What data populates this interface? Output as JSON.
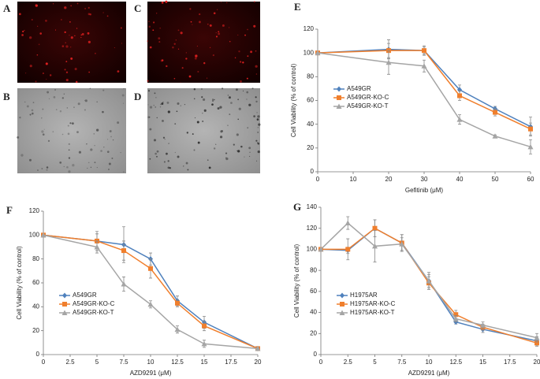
{
  "panels": [
    "A",
    "B",
    "C",
    "D"
  ],
  "chart_data": [
    {
      "type": "line",
      "label": "E",
      "x_label": "Gefitinib (μM)",
      "y_label": "Cell Viability (% of control)",
      "x": [
        0,
        20,
        30,
        40,
        50,
        60
      ],
      "xlim": [
        0,
        60
      ],
      "xticks": [
        0,
        10,
        20,
        30,
        40,
        50,
        60
      ],
      "ylim": [
        0,
        120
      ],
      "yticks": [
        0,
        20,
        40,
        60,
        80,
        100,
        120
      ],
      "legend": "center-left",
      "series": [
        {
          "name": "A549GR",
          "color": "#4f81bd",
          "marker": "diamond",
          "values": [
            100,
            103,
            102,
            69,
            53,
            38
          ],
          "errors": [
            0,
            8,
            3,
            4,
            2,
            8
          ]
        },
        {
          "name": "A549GR-KO-C",
          "color": "#f07f2d",
          "marker": "square",
          "values": [
            100,
            102,
            102,
            64,
            50,
            36
          ],
          "errors": [
            0,
            6,
            4,
            4,
            3,
            5
          ]
        },
        {
          "name": "A549GR-KO-T",
          "color": "#a5a5a5",
          "marker": "triangle",
          "values": [
            100,
            92,
            89,
            44,
            30,
            21
          ],
          "errors": [
            0,
            10,
            5,
            4,
            1,
            6
          ]
        }
      ]
    },
    {
      "type": "line",
      "label": "F",
      "x_label": "AZD9291 (μM)",
      "y_label": "Cell Viability (% of control)",
      "x": [
        0,
        5,
        7.5,
        10,
        12.5,
        15,
        20
      ],
      "xlim": [
        0,
        20
      ],
      "xticks": [
        0,
        2.5,
        5,
        7.5,
        10,
        12.5,
        15,
        17.5,
        20
      ],
      "ylim": [
        0,
        120
      ],
      "yticks": [
        0,
        20,
        40,
        60,
        80,
        100,
        120
      ],
      "legend": "lower-left",
      "series": [
        {
          "name": "A549GR",
          "color": "#4f81bd",
          "marker": "diamond",
          "values": [
            100,
            95,
            92,
            80,
            45,
            27,
            5
          ],
          "errors": [
            0,
            8,
            15,
            5,
            4,
            5,
            1
          ]
        },
        {
          "name": "A549GR-KO-C",
          "color": "#f07f2d",
          "marker": "square",
          "values": [
            100,
            95,
            87,
            72,
            43,
            24,
            5
          ],
          "errors": [
            0,
            6,
            8,
            8,
            3,
            4,
            1
          ]
        },
        {
          "name": "A549GR-KO-T",
          "color": "#a5a5a5",
          "marker": "triangle",
          "values": [
            100,
            90,
            59,
            42,
            21,
            9,
            5
          ],
          "errors": [
            0,
            5,
            6,
            3,
            3,
            3,
            1
          ]
        }
      ]
    },
    {
      "type": "line",
      "label": "G",
      "x_label": "AZD9291 (μM)",
      "y_label": "Cell Viability (% of control)",
      "x": [
        0,
        2.5,
        5,
        7.5,
        10,
        12.5,
        15,
        20
      ],
      "xlim": [
        0,
        20
      ],
      "xticks": [
        0,
        2.5,
        5,
        7.5,
        10,
        12.5,
        15,
        17.5,
        20
      ],
      "ylim": [
        0,
        140
      ],
      "yticks": [
        0,
        20,
        40,
        60,
        80,
        100,
        120,
        140
      ],
      "legend": "lower-left",
      "series": [
        {
          "name": "H1975AR",
          "color": "#4f81bd",
          "marker": "diamond",
          "values": [
            100,
            99,
            120,
            106,
            70,
            31,
            24,
            13
          ],
          "errors": [
            0,
            3,
            8,
            8,
            6,
            2,
            3,
            4
          ]
        },
        {
          "name": "H1975AR-KO-C",
          "color": "#f07f2d",
          "marker": "square",
          "values": [
            100,
            100,
            120,
            106,
            68,
            38,
            26,
            11
          ],
          "errors": [
            0,
            10,
            8,
            8,
            6,
            4,
            3,
            3
          ]
        },
        {
          "name": "H1975AR-KO-T",
          "color": "#a5a5a5",
          "marker": "triangle",
          "values": [
            100,
            125,
            103,
            105,
            70,
            34,
            28,
            16
          ],
          "errors": [
            0,
            6,
            15,
            6,
            8,
            3,
            3,
            4
          ]
        }
      ]
    }
  ]
}
